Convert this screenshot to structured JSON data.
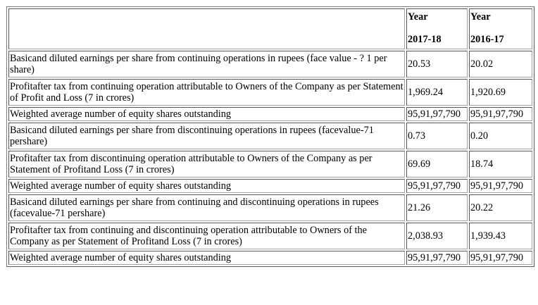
{
  "table": {
    "header": {
      "col1_line1": "Year",
      "col1_line2": "2017-18",
      "col2_line1": "Year",
      "col2_line2": "2016-17"
    },
    "rows": [
      {
        "label": "Basicand diluted earnings per share from continuing operations in rupees (face value - ? 1 per share)",
        "y2017": "20.53",
        "y2016": "20.02"
      },
      {
        "label": "Profitafter tax from continuing operation attributable to Owners of the Company as per Statement of Profit and Loss (7 in crores)",
        "y2017": "1,969.24",
        "y2016": "1,920.69"
      },
      {
        "label": "Weighted average number of equity shares outstanding",
        "y2017": "95,91,97,790",
        "y2016": "95,91,97,790"
      },
      {
        "label": "Basicand diluted earnings per share from discontinuing operations in rupees (facevalue-71 pershare)",
        "y2017": "0.73",
        "y2016": "0.20"
      },
      {
        "label": "Profitafter tax from discontinuing operation attributable to Owners of the Company as per Statement of Profitand Loss (7 in crores)",
        "y2017": "69.69",
        "y2016": "18.74"
      },
      {
        "label": "Weighted average number of equity shares outstanding",
        "y2017": "95,91,97,790",
        "y2016": "95,91,97,790"
      },
      {
        "label": "Basicand diluted earnings per share from continuing and discontinuing operations in rupees (facevalue-71 pershare)",
        "y2017": "21.26",
        "y2016": "20.22"
      },
      {
        "label": "Profitafter tax from continuing and discontinuing operation attributable to Owners of the Company as per Statement of Profitand Loss (7 in crores)",
        "y2017": "2,038.93",
        "y2016": "1,939.43"
      },
      {
        "label": "Weighted average number of equity shares outstanding",
        "y2017": "95,91,97,790",
        "y2016": "95,91,97,790"
      }
    ]
  }
}
